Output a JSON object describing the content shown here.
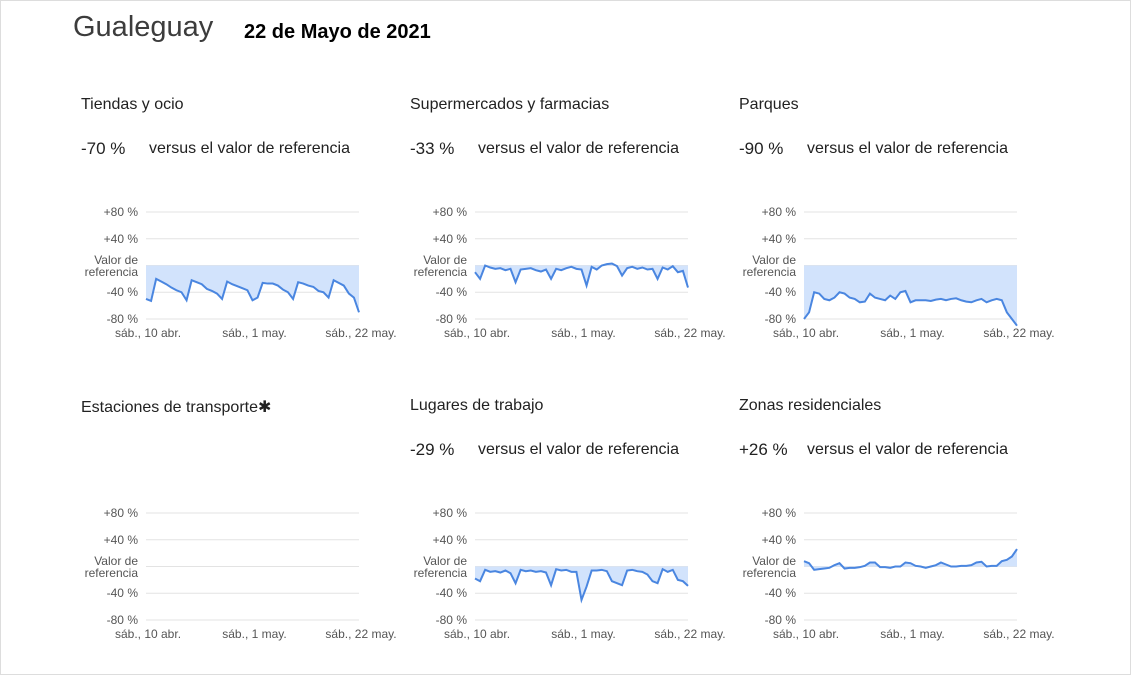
{
  "header": {
    "place": "Gualeguay",
    "date": "22 de Mayo de 2021"
  },
  "chart_data": [
    {
      "type": "line",
      "title": "Tiendas y ocio",
      "summary": "-70 %",
      "summary_text": "versus el valor de referencia",
      "categories": [
        "sáb., 10 abr.",
        null,
        null,
        null,
        null,
        null,
        null,
        null,
        null,
        null,
        null,
        null,
        null,
        null,
        null,
        null,
        null,
        null,
        null,
        null,
        null,
        "sáb., 1 may.",
        null,
        null,
        null,
        null,
        null,
        null,
        null,
        null,
        null,
        null,
        null,
        null,
        null,
        null,
        null,
        null,
        null,
        null,
        null,
        null,
        "sáb., 22 may."
      ],
      "ylim": [
        -80,
        80
      ],
      "yticks": [
        {
          "value": 80,
          "label": "+80 %"
        },
        {
          "value": 40,
          "label": "+40 %"
        },
        {
          "value": 0,
          "label": "Valor de referencia"
        },
        {
          "value": -40,
          "label": "-40 %"
        },
        {
          "value": -80,
          "label": "-80 %"
        }
      ],
      "series": [
        {
          "color": "#4a86e0",
          "values": [
            -50,
            -53,
            -20,
            -24,
            -28,
            -33,
            -37,
            -40,
            -52,
            -22,
            -25,
            -28,
            -35,
            -38,
            -42,
            -50,
            -24,
            -28,
            -31,
            -34,
            -37,
            -52,
            -48,
            -26,
            -27,
            -27,
            -30,
            -36,
            -40,
            -50,
            -25,
            -27,
            -30,
            -32,
            -38,
            -40,
            -48,
            -22,
            -26,
            -30,
            -42,
            -48,
            -70
          ]
        }
      ]
    },
    {
      "type": "line",
      "title": "Supermercados y farmacias",
      "summary": "-33 %",
      "summary_text": "versus el valor de referencia",
      "categories": [
        "sáb., 10 abr.",
        null,
        null,
        null,
        null,
        null,
        null,
        null,
        null,
        null,
        null,
        null,
        null,
        null,
        null,
        null,
        null,
        null,
        null,
        null,
        null,
        "sáb., 1 may.",
        null,
        null,
        null,
        null,
        null,
        null,
        null,
        null,
        null,
        null,
        null,
        null,
        null,
        null,
        null,
        null,
        null,
        null,
        null,
        null,
        "sáb., 22 may."
      ],
      "ylim": [
        -80,
        80
      ],
      "yticks": [
        {
          "value": 80,
          "label": "+80 %"
        },
        {
          "value": 40,
          "label": "+40 %"
        },
        {
          "value": 0,
          "label": "Valor de referencia"
        },
        {
          "value": -40,
          "label": "-40 %"
        },
        {
          "value": -80,
          "label": "-80 %"
        }
      ],
      "series": [
        {
          "color": "#4a86e0",
          "values": [
            -10,
            -20,
            0,
            -3,
            -5,
            -4,
            -7,
            -5,
            -25,
            -6,
            -5,
            -4,
            -7,
            -9,
            -6,
            -20,
            -5,
            -7,
            -4,
            -2,
            -5,
            -6,
            -30,
            -2,
            -6,
            0,
            2,
            3,
            -1,
            -15,
            -4,
            -2,
            -5,
            -3,
            -6,
            -5,
            -20,
            -3,
            -6,
            -1,
            -10,
            -8,
            -33
          ]
        }
      ]
    },
    {
      "type": "line",
      "title": "Parques",
      "summary": "-90 %",
      "summary_text": "versus el valor de referencia",
      "categories": [
        "sáb., 10 abr.",
        null,
        null,
        null,
        null,
        null,
        null,
        null,
        null,
        null,
        null,
        null,
        null,
        null,
        null,
        null,
        null,
        null,
        null,
        null,
        null,
        "sáb., 1 may.",
        null,
        null,
        null,
        null,
        null,
        null,
        null,
        null,
        null,
        null,
        null,
        null,
        null,
        null,
        null,
        null,
        null,
        null,
        null,
        null,
        "sáb., 22 may."
      ],
      "ylim": [
        -80,
        80
      ],
      "yticks": [
        {
          "value": 80,
          "label": "+80 %"
        },
        {
          "value": 40,
          "label": "+40 %"
        },
        {
          "value": 0,
          "label": "Valor de referencia"
        },
        {
          "value": -40,
          "label": "-40 %"
        },
        {
          "value": -80,
          "label": "-80 %"
        }
      ],
      "series": [
        {
          "color": "#4a86e0",
          "values": [
            -80,
            -70,
            -40,
            -42,
            -50,
            -52,
            -48,
            -40,
            -42,
            -48,
            -50,
            -55,
            -54,
            -42,
            -48,
            -50,
            -52,
            -45,
            -50,
            -40,
            -38,
            -55,
            -52,
            -52,
            -52,
            -53,
            -51,
            -50,
            -52,
            -50,
            -49,
            -52,
            -54,
            -55,
            -52,
            -50,
            -55,
            -52,
            -50,
            -52,
            -70,
            -80,
            -90
          ]
        }
      ]
    },
    {
      "type": "line",
      "title": "Estaciones de transporte✱",
      "categories": [
        "sáb., 10 abr.",
        null,
        null,
        null,
        null,
        null,
        null,
        null,
        null,
        null,
        null,
        null,
        null,
        null,
        null,
        null,
        null,
        null,
        null,
        null,
        null,
        "sáb., 1 may.",
        null,
        null,
        null,
        null,
        null,
        null,
        null,
        null,
        null,
        null,
        null,
        null,
        null,
        null,
        null,
        null,
        null,
        null,
        null,
        null,
        "sáb., 22 may."
      ],
      "ylim": [
        -80,
        80
      ],
      "yticks": [
        {
          "value": 80,
          "label": "+80 %"
        },
        {
          "value": 40,
          "label": "+40 %"
        },
        {
          "value": 0,
          "label": "Valor de referencia"
        },
        {
          "value": -40,
          "label": "-40 %"
        },
        {
          "value": -80,
          "label": "-80 %"
        }
      ]
    },
    {
      "type": "line",
      "title": "Lugares de trabajo",
      "summary": "-29 %",
      "summary_text": "versus el valor de referencia",
      "categories": [
        "sáb., 10 abr.",
        null,
        null,
        null,
        null,
        null,
        null,
        null,
        null,
        null,
        null,
        null,
        null,
        null,
        null,
        null,
        null,
        null,
        null,
        null,
        null,
        "sáb., 1 may.",
        null,
        null,
        null,
        null,
        null,
        null,
        null,
        null,
        null,
        null,
        null,
        null,
        null,
        null,
        null,
        null,
        null,
        null,
        null,
        null,
        "sáb., 22 may."
      ],
      "ylim": [
        -80,
        80
      ],
      "yticks": [
        {
          "value": 80,
          "label": "+80 %"
        },
        {
          "value": 40,
          "label": "+40 %"
        },
        {
          "value": 0,
          "label": "Valor de referencia"
        },
        {
          "value": -40,
          "label": "-40 %"
        },
        {
          "value": -80,
          "label": "-80 %"
        }
      ],
      "series": [
        {
          "color": "#4a86e0",
          "values": [
            -18,
            -22,
            -5,
            -8,
            -7,
            -9,
            -6,
            -10,
            -25,
            -5,
            -7,
            -6,
            -8,
            -7,
            -9,
            -28,
            -4,
            -6,
            -5,
            -8,
            -8,
            -50,
            -30,
            -6,
            -6,
            -5,
            -7,
            -22,
            -25,
            -28,
            -6,
            -5,
            -7,
            -8,
            -12,
            -22,
            -25,
            -4,
            -8,
            -5,
            -20,
            -22,
            -29
          ]
        }
      ]
    },
    {
      "type": "line",
      "title": "Zonas residenciales",
      "summary": "+26 %",
      "summary_text": "versus el valor de referencia",
      "categories": [
        "sáb., 10 abr.",
        null,
        null,
        null,
        null,
        null,
        null,
        null,
        null,
        null,
        null,
        null,
        null,
        null,
        null,
        null,
        null,
        null,
        null,
        null,
        null,
        "sáb., 1 may.",
        null,
        null,
        null,
        null,
        null,
        null,
        null,
        null,
        null,
        null,
        null,
        null,
        null,
        null,
        null,
        null,
        null,
        null,
        null,
        null,
        "sáb., 22 may."
      ],
      "ylim": [
        -80,
        80
      ],
      "yticks": [
        {
          "value": 80,
          "label": "+80 %"
        },
        {
          "value": 40,
          "label": "+40 %"
        },
        {
          "value": 0,
          "label": "Valor de referencia"
        },
        {
          "value": -40,
          "label": "-40 %"
        },
        {
          "value": -80,
          "label": "-80 %"
        }
      ],
      "series": [
        {
          "color": "#4a86e0",
          "values": [
            8,
            5,
            -5,
            -4,
            -3,
            -2,
            2,
            5,
            -3,
            -2,
            -2,
            -1,
            1,
            6,
            6,
            -1,
            -1,
            -2,
            0,
            0,
            6,
            5,
            1,
            0,
            -2,
            0,
            2,
            6,
            3,
            0,
            0,
            1,
            1,
            2,
            6,
            7,
            0,
            1,
            1,
            8,
            10,
            15,
            26
          ]
        }
      ]
    }
  ]
}
